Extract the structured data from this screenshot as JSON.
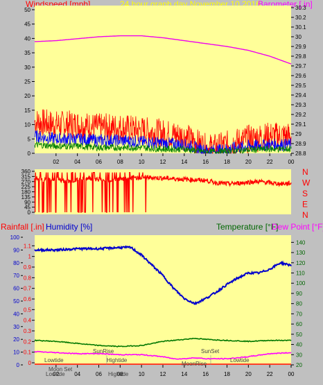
{
  "header": {
    "windspeed_label": "Windspeed [mph]",
    "graph_title": "24 hour graph day   November 10 2016",
    "barometer_label": "Barometer [.in]"
  },
  "middle_header": {
    "rainfall_label": "Rainfall [.in]",
    "humidity_label": "Humidity [%]",
    "temperature_label": "Temperature [°F]",
    "dewpoint_label": "Dew Point [°F]"
  },
  "colors": {
    "plot_bg": "#ffff99",
    "frame_bg": "#c0c0c0",
    "wind_gust": "#ff0000",
    "wind_avg": "#0000ff",
    "wind_low": "#008000",
    "barometer": "#ee00ee",
    "direction": "#ff0000",
    "humidity": "#0000cc",
    "temperature": "#007700",
    "dewpoint": "#ff00ff",
    "rain": "#ff0000"
  },
  "chart_data": [
    {
      "type": "line",
      "title": "24 hour graph day   November 10 2016",
      "xlabel": "",
      "x_ticks": [
        "02",
        "04",
        "06",
        "08",
        "10",
        "12",
        "14",
        "16",
        "18",
        "20",
        "22",
        "00"
      ],
      "y_left_label": "Windspeed [mph]",
      "y_left_ticks": [
        0,
        5,
        10,
        15,
        20,
        25,
        30,
        35,
        40,
        45,
        50
      ],
      "y_left_lim": [
        0,
        50
      ],
      "y_right_label": "Barometer [.in]",
      "y_right_ticks": [
        "28.8",
        "28.9",
        "29",
        "29.1",
        "29.2",
        "29.3",
        "29.4",
        "29.5",
        "29.6",
        "29.7",
        "29.8",
        "29.9",
        "30",
        "30.1",
        "30.2",
        "30.3"
      ],
      "y_right_lim": [
        28.8,
        30.3
      ],
      "series": [
        {
          "name": "Barometer",
          "axis": "right",
          "x": [
            0,
            2,
            4,
            6,
            8,
            10,
            12,
            14,
            16,
            18,
            20,
            22,
            24
          ],
          "values": [
            29.95,
            29.96,
            29.98,
            30.0,
            30.01,
            30.01,
            29.99,
            29.96,
            29.93,
            29.9,
            29.86,
            29.8,
            29.72
          ]
        },
        {
          "name": "Gust",
          "axis": "left",
          "x": [
            0,
            2,
            4,
            6,
            8,
            10,
            12,
            14,
            15,
            16,
            17,
            18,
            20,
            22,
            24
          ],
          "values": [
            11,
            10,
            10,
            9,
            9,
            8,
            7,
            6,
            4,
            2,
            2,
            3,
            5,
            6,
            6
          ]
        },
        {
          "name": "Average",
          "axis": "left",
          "x": [
            0,
            2,
            4,
            6,
            8,
            10,
            12,
            14,
            15,
            16,
            17,
            18,
            20,
            22,
            24
          ],
          "values": [
            6,
            5,
            5,
            4.5,
            4.5,
            4,
            3.5,
            3,
            2,
            1,
            1,
            1.5,
            2.5,
            3,
            3
          ]
        },
        {
          "name": "Low",
          "axis": "left",
          "x": [
            0,
            2,
            4,
            6,
            8,
            10,
            12,
            14,
            15,
            16,
            17,
            18,
            20,
            22,
            24
          ],
          "values": [
            3,
            2.5,
            2.5,
            2,
            2,
            2,
            1.5,
            1.5,
            1,
            0.5,
            0.5,
            0.7,
            1.2,
            1.5,
            1.5
          ]
        }
      ]
    },
    {
      "type": "scatter",
      "y_left_ticks": [
        0,
        45,
        90,
        135,
        180,
        225,
        270,
        315,
        360
      ],
      "y_left_lim": [
        0,
        360
      ],
      "y_right_ticks": [
        "N",
        "W",
        "S",
        "E",
        "N"
      ],
      "x_ticks": [],
      "series": [
        {
          "name": "Direction",
          "x": [
            0,
            1,
            2,
            3,
            4,
            5,
            6,
            7,
            8,
            9,
            10,
            11,
            12,
            13,
            14,
            15,
            16,
            17,
            18,
            19,
            20,
            21,
            22,
            23,
            24
          ],
          "values": [
            300,
            280,
            290,
            270,
            285,
            300,
            290,
            280,
            295,
            300,
            310,
            305,
            300,
            295,
            290,
            285,
            280,
            260,
            250,
            255,
            265,
            270,
            260,
            250,
            255
          ]
        }
      ]
    },
    {
      "type": "line",
      "x_ticks": [
        "02",
        "04",
        "06",
        "08",
        "10",
        "12",
        "14",
        "16",
        "18",
        "20",
        "22",
        "00"
      ],
      "y_left_label": "Humidity [%]",
      "y_left_ticks": [
        0,
        10,
        20,
        30,
        40,
        50,
        60,
        70,
        80,
        90,
        100
      ],
      "y_left_lim": [
        0,
        100
      ],
      "y_rain_label": "Rainfall [.in]",
      "y_rain_ticks": [
        "0",
        "0.1",
        "0.2",
        "0.3",
        "0.4",
        "0.5",
        "0.6",
        "0.7",
        "0.8",
        "0.9",
        "1",
        "1.1"
      ],
      "y_right_label": "Temperature [°F]",
      "y_right_ticks": [
        20,
        30,
        40,
        50,
        60,
        70,
        80,
        90,
        100,
        110,
        120,
        130,
        140
      ],
      "y_right_lim": [
        20,
        145
      ],
      "annotations": [
        "Lowtide",
        "Moon Set",
        "SunRise",
        "Hightide",
        "Lowtide",
        "SunSet",
        "MoonRise",
        "Hightide",
        "Lowtide"
      ],
      "series": [
        {
          "name": "Humidity",
          "axis": "left",
          "x": [
            0,
            2,
            4,
            6,
            8,
            9,
            10,
            11,
            12,
            13,
            14,
            15,
            16,
            17,
            18,
            19,
            20,
            21,
            22,
            23,
            24
          ],
          "values": [
            90,
            90,
            91,
            91,
            92,
            92,
            86,
            78,
            70,
            60,
            52,
            48,
            52,
            57,
            63,
            68,
            72,
            72,
            75,
            80,
            78
          ]
        },
        {
          "name": "Temperature",
          "axis": "right",
          "x": [
            0,
            2,
            4,
            6,
            8,
            10,
            12,
            14,
            15,
            16,
            18,
            20,
            22,
            24
          ],
          "values": [
            44,
            43,
            41,
            39,
            38,
            39,
            43,
            45,
            46,
            45,
            44,
            43,
            44,
            44
          ]
        },
        {
          "name": "Dew Point",
          "axis": "right",
          "x": [
            0,
            2,
            4,
            6,
            8,
            10,
            12,
            13,
            14,
            15,
            16,
            18,
            20,
            22,
            24
          ],
          "values": [
            33,
            32,
            31,
            31,
            30,
            30,
            28,
            26,
            26,
            27,
            26,
            26,
            28,
            31,
            32
          ]
        },
        {
          "name": "Rainfall",
          "axis": "rain",
          "x": [
            0,
            24
          ],
          "values": [
            0,
            0
          ]
        }
      ]
    }
  ]
}
